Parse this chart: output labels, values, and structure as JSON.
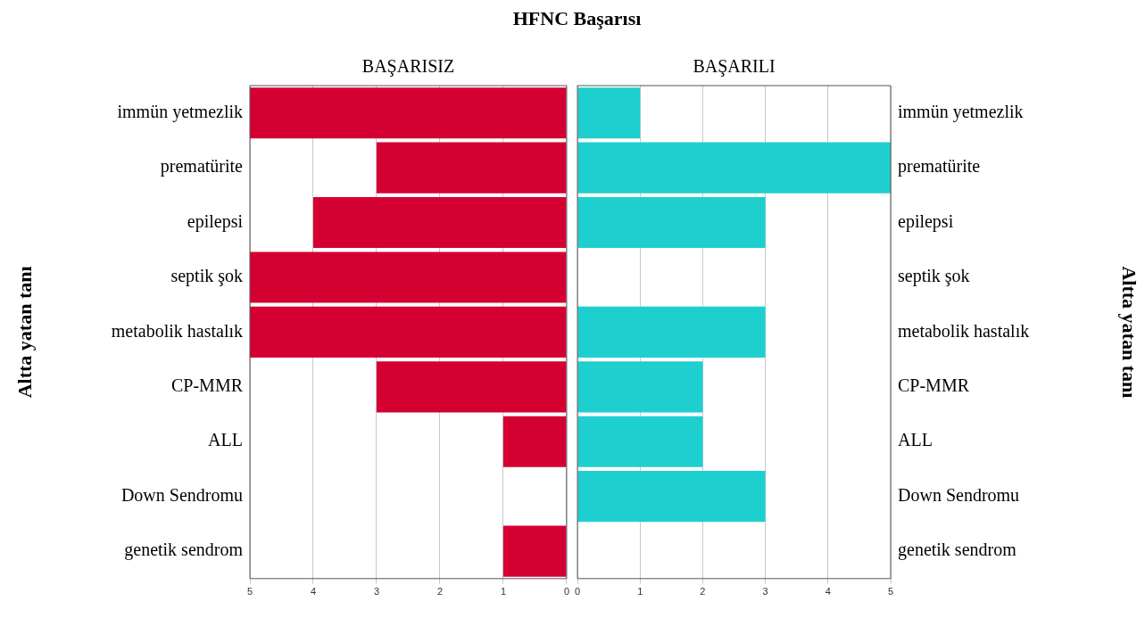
{
  "chart_data": [
    {
      "type": "bar",
      "orientation": "horizontal",
      "title": "HFNC Başarısı",
      "subtitle": "BAŞARISIZ",
      "ylabel": "Altta yatan tanı",
      "categories": [
        "immün yetmezlik",
        "prematürite",
        "epilepsi",
        "septik şok",
        "metabolik hastalık",
        "CP-MMR",
        "ALL",
        "Down Sendromu",
        "genetik sendrom"
      ],
      "values": [
        5,
        3,
        4,
        5,
        5,
        3,
        1,
        0,
        1
      ],
      "color": "#d50032",
      "xlim": [
        5,
        0
      ],
      "xticks": [
        5,
        4,
        3,
        2,
        1,
        0
      ],
      "grid": "x",
      "legend": false
    },
    {
      "type": "bar",
      "orientation": "horizontal",
      "subtitle": "BAŞARILI",
      "ylabel": "Altta yatan tanı",
      "categories": [
        "immün yetmezlik",
        "prematürite",
        "epilepsi",
        "septik şok",
        "metabolik hastalık",
        "CP-MMR",
        "ALL",
        "Down Sendromu",
        "genetik sendrom"
      ],
      "values": [
        1,
        5,
        3,
        0,
        3,
        2,
        2,
        3,
        0
      ],
      "color": "#1ecfcf",
      "xlim": [
        0,
        5
      ],
      "xticks": [
        0,
        1,
        2,
        3,
        4,
        5
      ],
      "grid": "x",
      "legend": false
    }
  ]
}
